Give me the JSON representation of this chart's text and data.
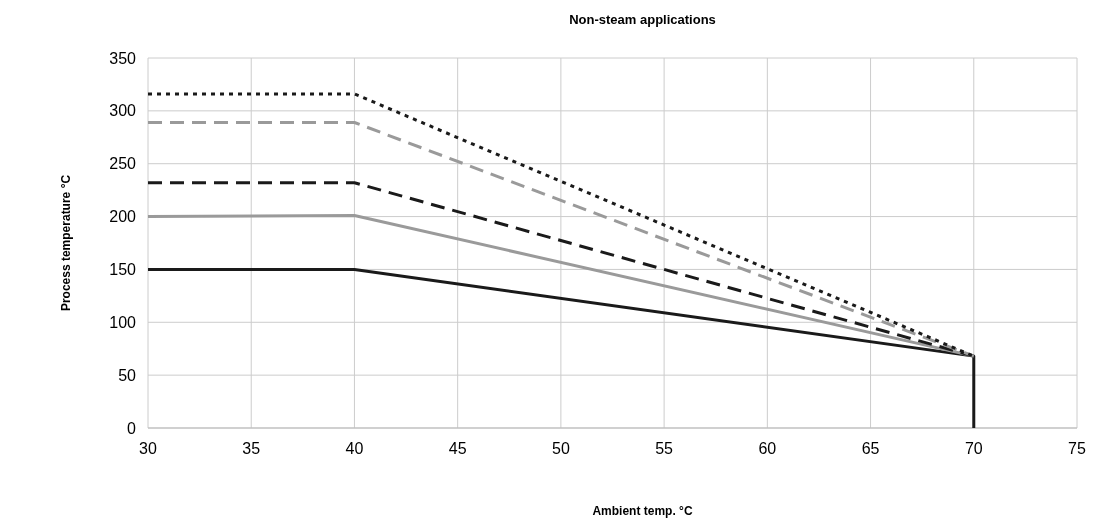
{
  "chart_data": {
    "type": "line",
    "title": "Non-steam applications",
    "xlabel": "Ambient temp. °C",
    "ylabel": "Process temperature °C",
    "xlim": [
      30,
      75
    ],
    "xticks": [
      30,
      35,
      40,
      45,
      50,
      55,
      60,
      65,
      70,
      75
    ],
    "ylim": [
      0,
      350
    ],
    "yticks": [
      0,
      50,
      100,
      150,
      200,
      250,
      300,
      350
    ],
    "grid": true,
    "marker": "none",
    "series": [
      {
        "color": "#1a1a1a",
        "line_style": "solid",
        "x": [
          30,
          40,
          70,
          70
        ],
        "values": [
          150,
          150,
          68,
          0
        ]
      },
      {
        "color": "#9a9a9a",
        "line_style": "solid",
        "x": [
          30,
          40,
          70
        ],
        "values": [
          200,
          201,
          68
        ]
      },
      {
        "color": "#1a1a1a",
        "line_style": "dashed",
        "x": [
          30,
          40,
          70
        ],
        "values": [
          232,
          232,
          68
        ]
      },
      {
        "color": "#9a9a9a",
        "line_style": "dashed",
        "x": [
          30,
          40,
          70
        ],
        "values": [
          289,
          289,
          68
        ]
      },
      {
        "color": "#1a1a1a",
        "line_style": "dotted",
        "x": [
          30,
          40,
          70
        ],
        "values": [
          316,
          316,
          68
        ]
      }
    ]
  }
}
